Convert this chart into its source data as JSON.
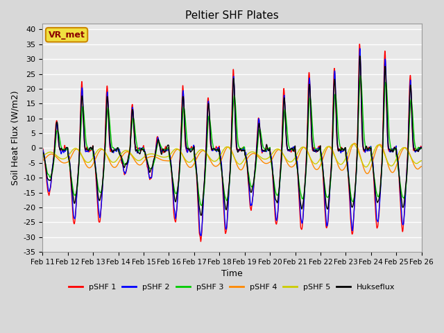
{
  "title": "Peltier SHF Plates",
  "xlabel": "Time",
  "ylabel": "Soil Heat Flux (W/m2)",
  "ylim": [
    -35,
    42
  ],
  "yticks": [
    -35,
    -30,
    -25,
    -20,
    -15,
    -10,
    -5,
    0,
    5,
    10,
    15,
    20,
    25,
    30,
    35,
    40
  ],
  "xtick_labels": [
    "Feb 11",
    "Feb 12",
    "Feb 13",
    "Feb 14",
    "Feb 15",
    "Feb 16",
    "Feb 17",
    "Feb 18",
    "Feb 19",
    "Feb 20",
    "Feb 21",
    "Feb 22",
    "Feb 23",
    "Feb 24",
    "Feb 25",
    "Feb 26"
  ],
  "legend_labels": [
    "pSHF 1",
    "pSHF 2",
    "pSHF 3",
    "pSHF 4",
    "pSHF 5",
    "Hukseflux"
  ],
  "line_colors": [
    "#ff0000",
    "#0000ff",
    "#00cc00",
    "#ff8800",
    "#cccc00",
    "#000000"
  ],
  "annotation_text": "VR_met",
  "bg_color": "#d8d8d8",
  "plot_bg_color": "#e8e8e8",
  "n_points": 3600,
  "days": 15
}
